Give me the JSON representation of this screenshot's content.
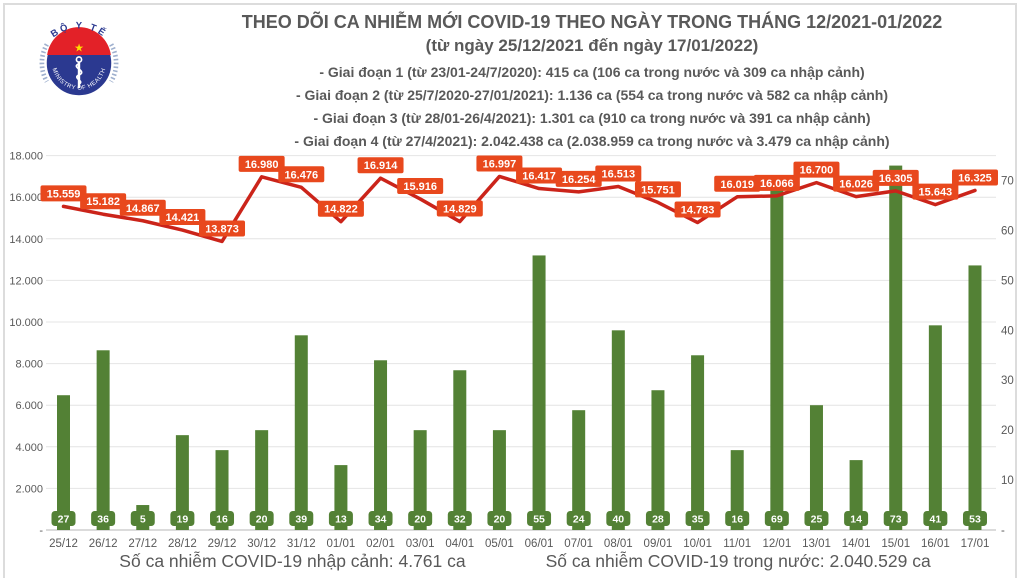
{
  "header": {
    "title": "THEO DÕI CA NHIỄM MỚI COVID-19 THEO NGÀY TRONG THÁNG 12/2021-01/2022",
    "subtitle": "(từ ngày 25/12/2021 đến ngày 17/01/2022)",
    "notes": [
      "- Giai đoạn 1 (từ 23/01-24/7/2020): 415 ca (106 ca trong nước và 309 ca nhập cảnh)",
      "- Giai đoạn 2 (từ 25/7/2020-27/01/2021): 1.136 ca (554 ca trong nước và 582 ca nhập cảnh)",
      "- Giai đoạn 3 (từ 28/01-26/4/2021): 1.301 ca (910 ca trong nước và 391 ca nhập cảnh)",
      "- Giai đoạn 4 (từ 27/4/2021): 2.042.438 ca (2.038.959 ca trong nước và 3.479 ca nhập cảnh)"
    ]
  },
  "logo": {
    "top_text": "BỘ Y TẾ",
    "bottom_text": "MINISTRY OF HEALTH"
  },
  "legend": {
    "bars_label": "Số ca nhiễm COVID-19 nhập cảnh: 4.761 ca",
    "line_label": "Số ca nhiễm COVID-19 trong nước: 2.040.529 ca"
  },
  "colors": {
    "bar": "#538135",
    "line": "#CB241A",
    "line_label_bg": "#E8481D",
    "text": "#595959",
    "grid": "#E4E4E4",
    "axis": "#CFCFCF"
  },
  "chart_data": {
    "type": "combo bar+line",
    "title": "THEO DÕI CA NHIỄM MỚI COVID-19 THEO NGÀY TRONG THÁNG 12/2021-01/2022",
    "grid": true,
    "legend_position": "bottom",
    "categories": [
      "25/12",
      "26/12",
      "27/12",
      "28/12",
      "29/12",
      "30/12",
      "31/12",
      "01/01",
      "02/01",
      "03/01",
      "04/01",
      "05/01",
      "06/01",
      "07/01",
      "08/01",
      "09/01",
      "10/01",
      "11/01",
      "12/01",
      "13/01",
      "14/01",
      "15/01",
      "16/01",
      "17/01"
    ],
    "series": [
      {
        "name": "Số ca nhiễm COVID-19 nhập cảnh",
        "type": "bar",
        "axis": "right",
        "values": [
          27,
          36,
          5,
          19,
          16,
          20,
          39,
          13,
          34,
          20,
          32,
          20,
          55,
          24,
          40,
          28,
          35,
          16,
          69,
          25,
          14,
          73,
          41,
          53
        ]
      },
      {
        "name": "Số ca nhiễm COVID-19 trong nước",
        "type": "line",
        "axis": "left",
        "values": [
          15559,
          15182,
          14867,
          14421,
          13873,
          16980,
          16476,
          14822,
          16914,
          15916,
          14829,
          16997,
          16417,
          16254,
          16513,
          15751,
          14783,
          16019,
          16066,
          16700,
          16026,
          16305,
          15643,
          16325
        ],
        "labels": [
          "15.559",
          "15.182",
          "14.867",
          "14.421",
          "13.873",
          "16.980",
          "16.476",
          "14.822",
          "16.914",
          "15.916",
          "14.829",
          "16.997",
          "16.417",
          "16.254",
          "16.513",
          "15.751",
          "14.783",
          "16.019",
          "16.066",
          "16.700",
          "16.026",
          "16.305",
          "15.643",
          "16.325"
        ]
      }
    ],
    "left_axis": {
      "min": 0,
      "max": 18000,
      "ticks": [
        18000,
        16000,
        14000,
        12000,
        10000,
        8000,
        6000,
        4000,
        2000
      ],
      "tick_labels": [
        "18.000",
        "16.000",
        "14.000",
        "12.000",
        "10.000",
        "8.000",
        "6.000",
        "4.000",
        "2.000"
      ],
      "zero_label": "-"
    },
    "right_axis": {
      "min": 0,
      "max": 75,
      "ticks": [
        70,
        60,
        50,
        40,
        30,
        20,
        10
      ],
      "zero_label": "-"
    }
  }
}
